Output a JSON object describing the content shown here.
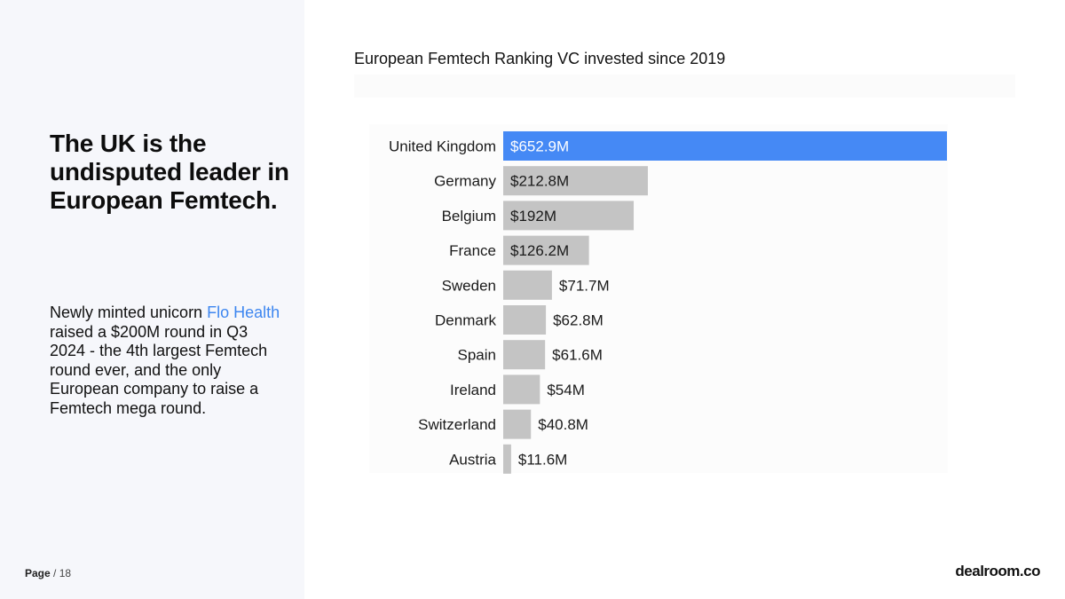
{
  "slide": {
    "headline": "The UK is the undisputed leader in European Femtech.",
    "body": {
      "before_link": "Newly minted unicorn ",
      "link_text": "Flo Health",
      "after_link": " raised a $200M round in Q3 2024 - the 4th largest Femtech round ever, and the only European company to raise a Femtech mega round."
    },
    "footer": {
      "page_label": "Page",
      "separator": " / ",
      "page_total": "18"
    },
    "logo_text": "dealroom.co"
  },
  "colors": {
    "highlight_bar": "#4589f5",
    "bar": "#c4c4c4",
    "link": "#3d86f0",
    "label_text_on_highlight": "#ffffff",
    "label_text": "#1a1a1a"
  },
  "chart_data": {
    "type": "bar",
    "orientation": "horizontal",
    "title": "European Femtech Ranking VC invested since 2019",
    "categories": [
      "United Kingdom",
      "Germany",
      "Belgium",
      "France",
      "Sweden",
      "Denmark",
      "Spain",
      "Ireland",
      "Switzerland",
      "Austria"
    ],
    "values": [
      652.9,
      212.8,
      192,
      126.2,
      71.7,
      62.8,
      61.6,
      54,
      40.8,
      11.6
    ],
    "value_labels": [
      "$652.9M",
      "$212.8M",
      "$192M",
      "$126.2M",
      "$71.7M",
      "$62.8M",
      "$61.6M",
      "$54M",
      "$40.8M",
      "$11.6M"
    ],
    "unit": "$M",
    "highlight_index": 0,
    "xlim": [
      0,
      652.9
    ],
    "grid": false,
    "legend": "none"
  }
}
